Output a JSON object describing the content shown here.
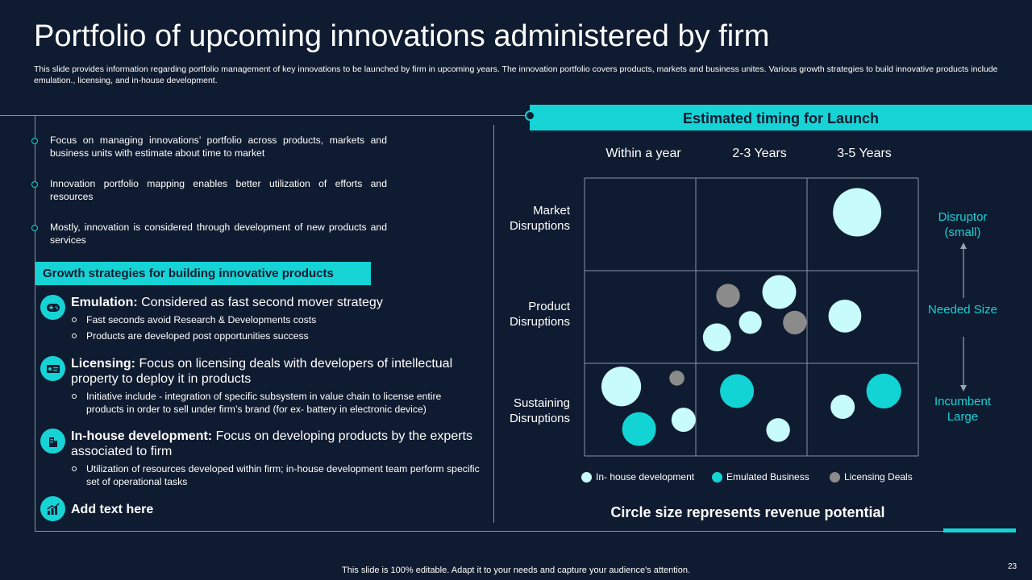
{
  "header": {
    "title": "Portfolio of upcoming innovations administered by firm",
    "subtitle": "This slide provides information regarding portfolio management of key innovations to be launched by firm in upcoming years. The innovation portfolio covers products, markets and business unites. Various growth strategies to build innovative products include emulation., licensing, and in-house development."
  },
  "bullets": [
    "Focus on managing innovations’ portfolio across products, markets and business units with estimate about time to market",
    "Innovation portfolio mapping enables better utilization of efforts and resources",
    "Mostly, innovation is considered through development of new products and services"
  ],
  "growth": {
    "heading": "Growth strategies for building innovative products",
    "items": [
      {
        "icon": "controller-icon",
        "title": "Emulation:",
        "desc": " Considered as fast second mover strategy",
        "subs": [
          "Fast seconds avoid Research & Developments costs",
          "Products are developed post opportunities success"
        ]
      },
      {
        "icon": "license-card-icon",
        "title": "Licensing:",
        "desc": " Focus on licensing deals with developers of intellectual property to deploy it in products",
        "subs": [
          "Initiative include - integration of specific subsystem in value chain to license entire products in order to sell under firm’s brand (for ex- battery in electronic device)"
        ]
      },
      {
        "icon": "building-icon",
        "title": "In-house development:",
        "desc": " Focus on developing products by the experts associated to firm",
        "subs": [
          "Utilization of resources developed within firm; in-house development team perform specific set of operational tasks"
        ]
      },
      {
        "icon": "growth-chart-icon",
        "title": "Add text here",
        "desc": "",
        "subs": []
      }
    ]
  },
  "chart_data": {
    "type": "scatter",
    "title": "Estimated timing for Launch",
    "caption": "Circle size represents revenue potential",
    "columns": [
      "Within a year",
      "2-3 Years",
      "3-5 Years"
    ],
    "rows": [
      "Market Disruptions",
      "Product Disruptions",
      "Sustaining Disruptions"
    ],
    "side_labels": {
      "top": "Disruptor (small)",
      "middle": "Needed Size",
      "bottom": "Incumbent Large"
    },
    "series": [
      {
        "name": "In- house development",
        "color": "#c8fbfc",
        "points": [
          {
            "col": 2,
            "row": 0,
            "fx": 0.45,
            "fy": 0.37,
            "size": 1.0
          },
          {
            "col": 1,
            "row": 1,
            "fx": 0.75,
            "fy": 0.23,
            "size": 0.7
          },
          {
            "col": 1,
            "row": 1,
            "fx": 0.19,
            "fy": 0.72,
            "size": 0.58
          },
          {
            "col": 1,
            "row": 1,
            "fx": 0.49,
            "fy": 0.56,
            "size": 0.47
          },
          {
            "col": 2,
            "row": 1,
            "fx": 0.34,
            "fy": 0.49,
            "size": 0.68
          },
          {
            "col": 0,
            "row": 2,
            "fx": 0.33,
            "fy": 0.25,
            "size": 0.82
          },
          {
            "col": 0,
            "row": 2,
            "fx": 0.89,
            "fy": 0.61,
            "size": 0.5
          },
          {
            "col": 1,
            "row": 2,
            "fx": 0.74,
            "fy": 0.72,
            "size": 0.49
          },
          {
            "col": 2,
            "row": 2,
            "fx": 0.32,
            "fy": 0.47,
            "size": 0.5
          }
        ]
      },
      {
        "name": "Emulated Business",
        "color": "#12d4d4",
        "points": [
          {
            "col": 0,
            "row": 2,
            "fx": 0.49,
            "fy": 0.71,
            "size": 0.7
          },
          {
            "col": 1,
            "row": 2,
            "fx": 0.37,
            "fy": 0.3,
            "size": 0.7
          },
          {
            "col": 2,
            "row": 2,
            "fx": 0.69,
            "fy": 0.3,
            "size": 0.72
          }
        ]
      },
      {
        "name": "Licensing Deals",
        "color": "#8b8b8b",
        "points": [
          {
            "col": 1,
            "row": 1,
            "fx": 0.29,
            "fy": 0.27,
            "size": 0.49
          },
          {
            "col": 1,
            "row": 1,
            "fx": 0.89,
            "fy": 0.56,
            "size": 0.49
          },
          {
            "col": 0,
            "row": 2,
            "fx": 0.83,
            "fy": 0.16,
            "size": 0.31
          }
        ]
      }
    ]
  },
  "footer": {
    "text": "This slide is 100% editable. Adapt it to your needs and capture your audience's attention.",
    "page": "23"
  }
}
